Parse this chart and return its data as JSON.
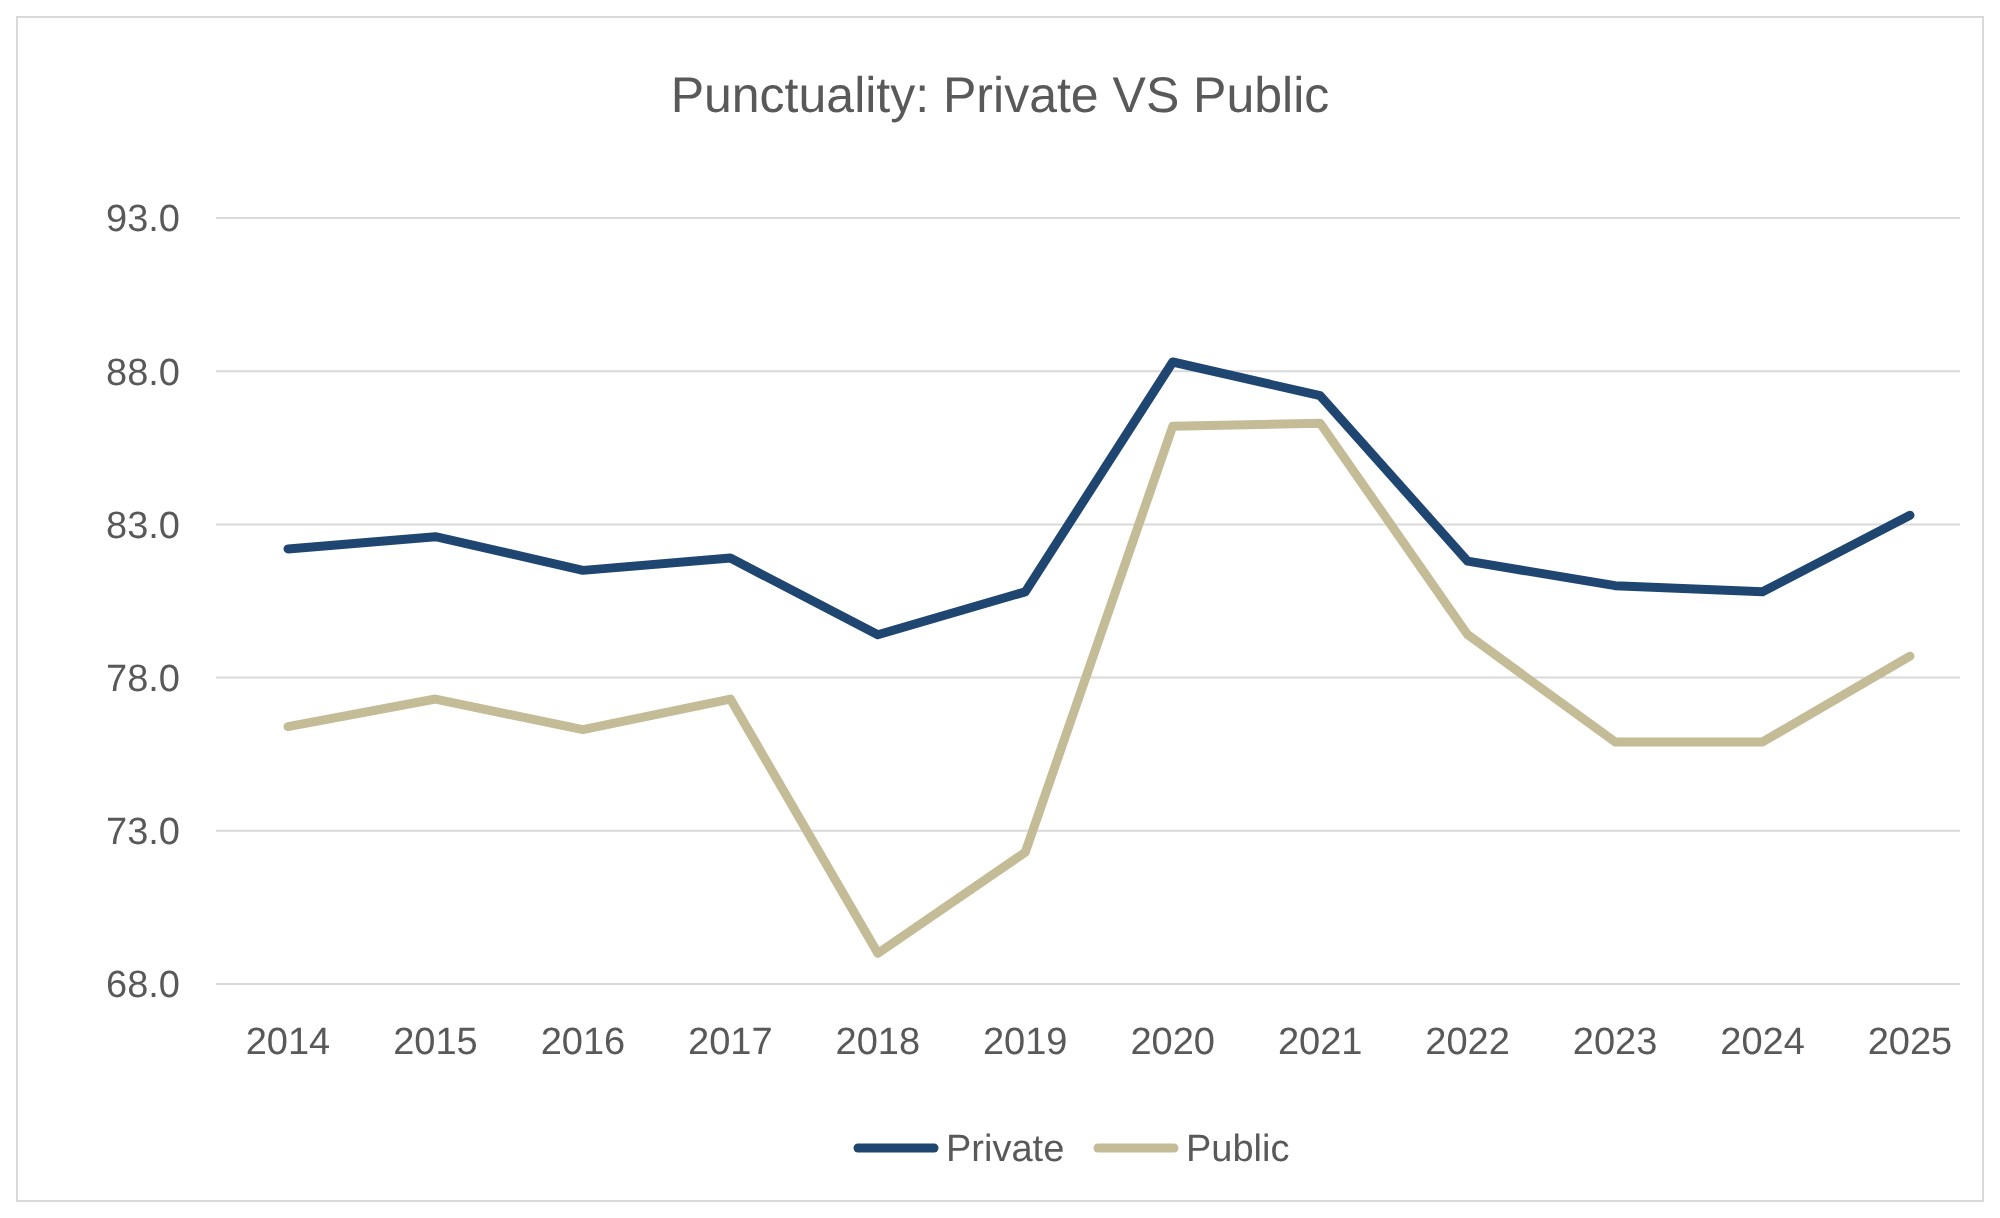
{
  "chart_data": {
    "type": "line",
    "title": "Punctuality: Private VS Public",
    "categories": [
      "2014",
      "2015",
      "2016",
      "2017",
      "2018",
      "2019",
      "2020",
      "2021",
      "2022",
      "2023",
      "2024",
      "2025"
    ],
    "series": [
      {
        "name": "Private",
        "color": "#1f4670",
        "values": [
          82.2,
          82.6,
          81.5,
          81.9,
          79.4,
          80.8,
          88.3,
          87.2,
          81.8,
          81.0,
          80.8,
          83.3
        ]
      },
      {
        "name": "Public",
        "color": "#c4bc96",
        "values": [
          76.4,
          77.3,
          76.3,
          77.3,
          69.0,
          72.3,
          86.2,
          86.3,
          79.4,
          75.9,
          75.9,
          78.7
        ]
      }
    ],
    "ylim": [
      68,
      93
    ],
    "yticks": [
      {
        "value": 68,
        "label": "68.0"
      },
      {
        "value": 73,
        "label": "73.0"
      },
      {
        "value": 78,
        "label": "78.0"
      },
      {
        "value": 83,
        "label": "83.0"
      },
      {
        "value": 88,
        "label": "88.0"
      },
      {
        "value": 93,
        "label": "93.0"
      }
    ],
    "grid": "y",
    "legend": "bottom",
    "marker": "none",
    "line_style": "solid"
  }
}
